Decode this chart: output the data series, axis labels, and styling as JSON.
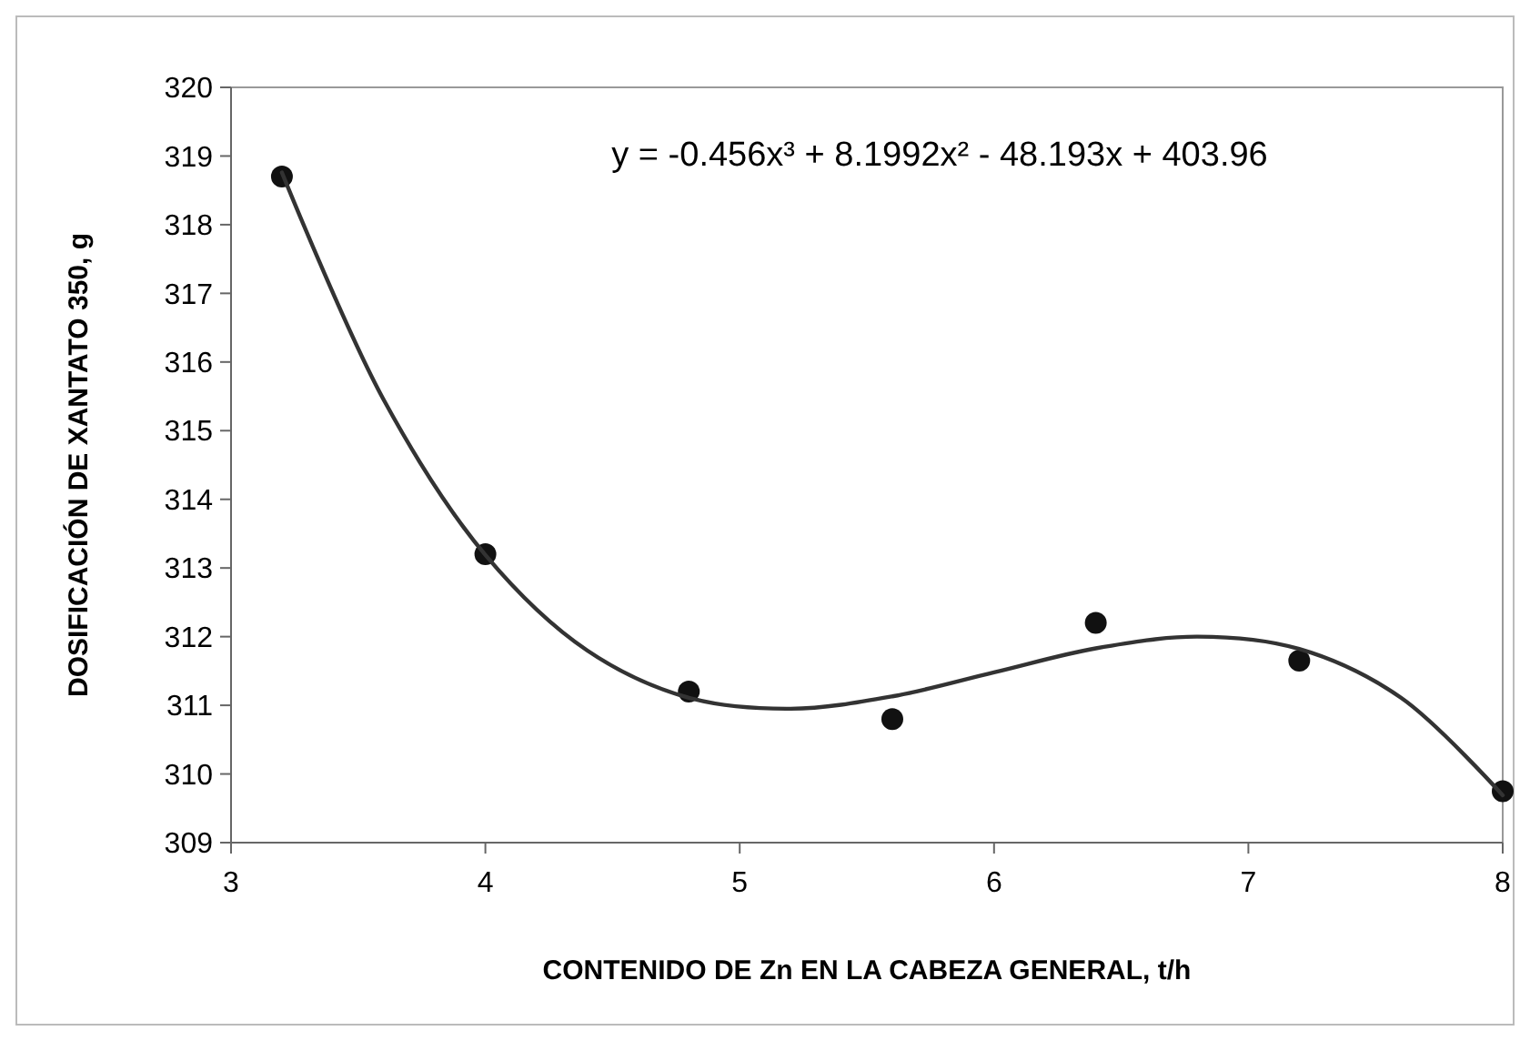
{
  "chart_data": {
    "type": "scatter",
    "xlabel": "CONTENIDO DE Zn EN LA CABEZA GENERAL, t/h",
    "ylabel": "DOSIFICACIÓN DE XANTATO 350, g",
    "annotations": [
      "y = -0.456x³ + 8.1992x² - 48.193x + 403.96"
    ],
    "xlim": [
      3,
      8
    ],
    "xticks": [
      3,
      4,
      5,
      6,
      7,
      8
    ],
    "ylim": [
      309,
      320
    ],
    "yticks": [
      309,
      310,
      311,
      312,
      313,
      314,
      315,
      316,
      317,
      318,
      319,
      320
    ],
    "grid": false,
    "marker": "circle",
    "series": [
      {
        "color": "#111111",
        "x": [
          3.2,
          4,
          4.8,
          5.6,
          6.4,
          7.2,
          8
        ],
        "values": [
          318.7,
          313.2,
          311.2,
          310.8,
          312.2,
          311.65,
          309.75
        ]
      },
      {
        "type": "line",
        "color": "#333333",
        "line_style": "solid",
        "marker": "none",
        "x": [
          3.2,
          3.6,
          4,
          4.4,
          4.8,
          5.2,
          5.6,
          6,
          6.4,
          6.8,
          7.2,
          7.6,
          8
        ],
        "values": [
          318.76,
          315.45,
          313.19,
          311.8,
          311.11,
          310.95,
          311.13,
          311.48,
          311.83,
          312,
          311.82,
          311.11,
          309.69
        ]
      }
    ]
  }
}
